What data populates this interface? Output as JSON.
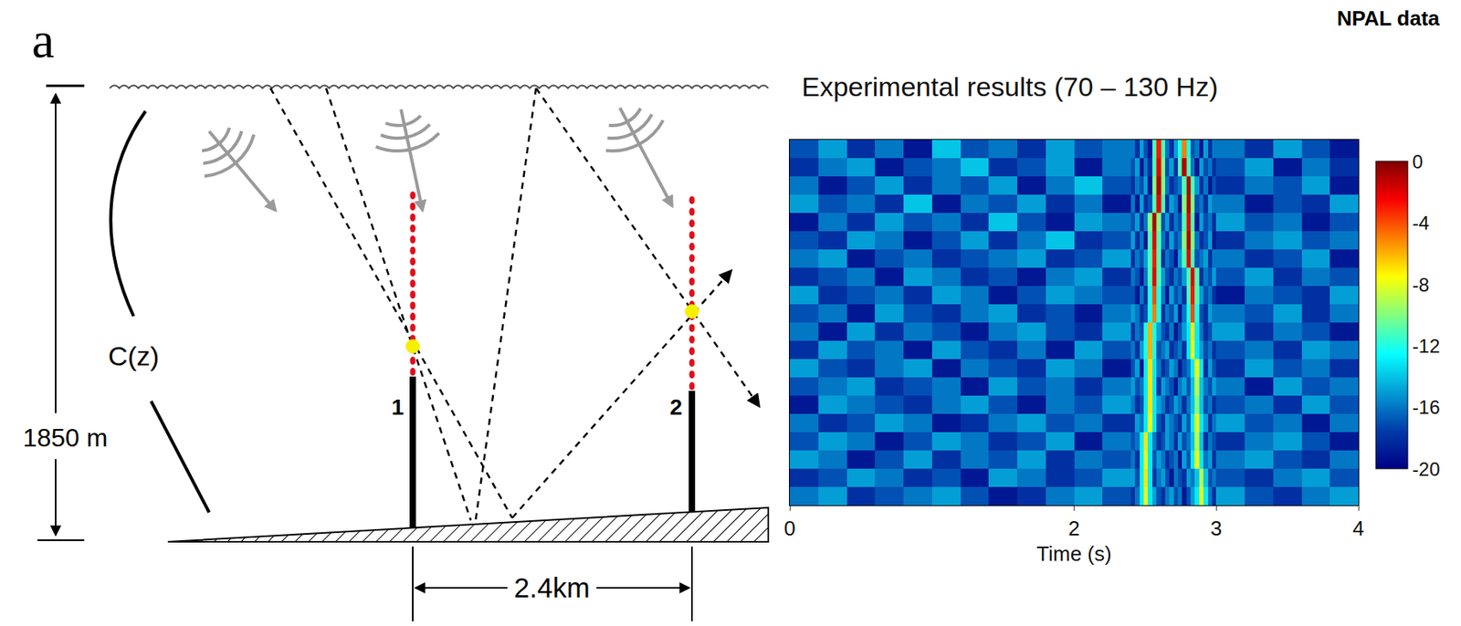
{
  "header": {
    "text": "NPAL data"
  },
  "diagram": {
    "panel_label": "a",
    "depth_label": "1850 m",
    "profile_label": "C(z)",
    "moorings": [
      "1",
      "2"
    ],
    "distance_label": "2.4km"
  },
  "chart_data": {
    "type": "heatmap",
    "title": "Experimental results (70 – 130 Hz)",
    "x_label": "Time (s)",
    "xlim": [
      0,
      4
    ],
    "xticks": [
      0,
      2,
      3,
      4
    ],
    "ylim": [
      20,
      0
    ],
    "tick_labels": "x",
    "x_edges": [
      0,
      0.2,
      0.4,
      0.6,
      0.8,
      1.0,
      1.2,
      1.4,
      1.6,
      1.8,
      2.0,
      2.2,
      2.4,
      2.43,
      2.46,
      2.49,
      2.52,
      2.55,
      2.58,
      2.61,
      2.64,
      2.67,
      2.7,
      2.73,
      2.76,
      2.79,
      2.82,
      2.85,
      2.88,
      2.91,
      2.94,
      2.97,
      3.0,
      3.2,
      3.4,
      3.6,
      3.8,
      4.0
    ],
    "y_edges": [
      0,
      1,
      2,
      3,
      4,
      5,
      6,
      7,
      8,
      9,
      10,
      11,
      12,
      13,
      14,
      15,
      16,
      17,
      18,
      19,
      20
    ],
    "cells": [
      [
        -17,
        -15,
        -18,
        -16,
        -19,
        -14,
        -17,
        -16,
        -18,
        -15,
        -17,
        -16,
        -16,
        -18,
        -15,
        -17,
        -19,
        -11,
        -3,
        -11,
        -16,
        -18,
        -15,
        -12,
        -5,
        -12,
        -17,
        -16,
        -19,
        -15,
        -18,
        -16,
        -16,
        -18,
        -15,
        -17,
        -19
      ],
      [
        -18,
        -16,
        -15,
        -19,
        -17,
        -16,
        -14,
        -18,
        -17,
        -15,
        -19,
        -16,
        -17,
        -15,
        -19,
        -16,
        -18,
        -11,
        -2,
        -10,
        -17,
        -15,
        -18,
        -11,
        -1,
        -11,
        -16,
        -19,
        -15,
        -17,
        -16,
        -18,
        -17,
        -15,
        -19,
        -16,
        -18
      ],
      [
        -16,
        -19,
        -17,
        -15,
        -18,
        -16,
        -17,
        -15,
        -19,
        -16,
        -14,
        -17,
        -18,
        -16,
        -17,
        -15,
        -19,
        -10,
        -1,
        -10,
        -16,
        -18,
        -17,
        -16,
        -11,
        -1,
        -11,
        -15,
        -18,
        -16,
        -19,
        -17,
        -18,
        -16,
        -17,
        -15,
        -19
      ],
      [
        -15,
        -17,
        -16,
        -18,
        -14,
        -19,
        -16,
        -17,
        -15,
        -18,
        -16,
        -19,
        -16,
        -19,
        -15,
        -18,
        -17,
        -11,
        -2,
        -11,
        -18,
        -15,
        -16,
        -19,
        -10,
        -1,
        -10,
        -17,
        -16,
        -18,
        -15,
        -16,
        -16,
        -19,
        -17,
        -18,
        -15
      ],
      [
        -19,
        -16,
        -18,
        -15,
        -17,
        -16,
        -18,
        -14,
        -17,
        -19,
        -15,
        -16,
        -17,
        -15,
        -18,
        -16,
        -10,
        -1,
        -10,
        -17,
        -15,
        -18,
        -16,
        -17,
        -11,
        -2,
        -11,
        -19,
        -15,
        -17,
        -16,
        -18,
        -15,
        -17,
        -16,
        -19,
        -17
      ],
      [
        -17,
        -18,
        -15,
        -16,
        -19,
        -17,
        -15,
        -18,
        -16,
        -14,
        -18,
        -17,
        -15,
        -18,
        -16,
        -19,
        -11,
        -2,
        -11,
        -16,
        -18,
        -15,
        -17,
        -16,
        -10,
        -1,
        -10,
        -16,
        -18,
        -17,
        -15,
        -19,
        -18,
        -16,
        -15,
        -17,
        -16
      ],
      [
        -16,
        -15,
        -19,
        -17,
        -16,
        -18,
        -17,
        -16,
        -15,
        -18,
        -17,
        -15,
        -18,
        -16,
        -17,
        -15,
        -11,
        -3,
        -11,
        -18,
        -16,
        -17,
        -19,
        -15,
        -11,
        -2,
        -11,
        -17,
        -16,
        -15,
        -18,
        -16,
        -16,
        -18,
        -17,
        -15,
        -19
      ],
      [
        -18,
        -17,
        -16,
        -19,
        -15,
        -16,
        -18,
        -17,
        -19,
        -16,
        -15,
        -18,
        -16,
        -17,
        -19,
        -16,
        -11,
        -2,
        -11,
        -15,
        -17,
        -18,
        -16,
        -17,
        -15,
        -11,
        -2,
        -11,
        -18,
        -16,
        -17,
        -15,
        -17,
        -15,
        -18,
        -16,
        -17
      ],
      [
        -15,
        -18,
        -17,
        -16,
        -18,
        -15,
        -16,
        -19,
        -17,
        -15,
        -16,
        -17,
        -17,
        -19,
        -16,
        -18,
        -12,
        -4,
        -12,
        -16,
        -19,
        -15,
        -17,
        -16,
        -18,
        -11,
        -3,
        -11,
        -15,
        -17,
        -16,
        -18,
        -19,
        -16,
        -17,
        -18,
        -15
      ],
      [
        -17,
        -16,
        -19,
        -15,
        -17,
        -18,
        -16,
        -15,
        -18,
        -17,
        -19,
        -16,
        -15,
        -16,
        -18,
        -17,
        -12,
        -5,
        -12,
        -18,
        -16,
        -17,
        -15,
        -19,
        -16,
        -12,
        -4,
        -12,
        -17,
        -18,
        -15,
        -16,
        -16,
        -17,
        -15,
        -18,
        -16
      ],
      [
        -16,
        -19,
        -15,
        -18,
        -16,
        -17,
        -19,
        -16,
        -15,
        -17,
        -18,
        -15,
        -18,
        -16,
        -17,
        -12,
        -6,
        -12,
        -15,
        -17,
        -18,
        -16,
        -19,
        -17,
        -15,
        -13,
        -7,
        -13,
        -16,
        -18,
        -17,
        -15,
        -15,
        -18,
        -16,
        -17,
        -19
      ],
      [
        -18,
        -15,
        -17,
        -16,
        -19,
        -15,
        -17,
        -18,
        -16,
        -19,
        -15,
        -17,
        -16,
        -18,
        -15,
        -12,
        -6,
        -12,
        -17,
        -16,
        -15,
        -18,
        -17,
        -16,
        -18,
        -13,
        -8,
        -13,
        -15,
        -17,
        -16,
        -18,
        -17,
        -16,
        -18,
        -15,
        -16
      ],
      [
        -15,
        -17,
        -18,
        -16,
        -15,
        -19,
        -16,
        -17,
        -18,
        -15,
        -16,
        -19,
        -17,
        -15,
        -19,
        -13,
        -7,
        -13,
        -16,
        -18,
        -17,
        -15,
        -16,
        -19,
        -17,
        -16,
        -13,
        -8,
        -13,
        -18,
        -15,
        -17,
        -18,
        -15,
        -17,
        -16,
        -18
      ],
      [
        -17,
        -16,
        -15,
        -18,
        -17,
        -16,
        -19,
        -15,
        -17,
        -16,
        -18,
        -16,
        -15,
        -17,
        -16,
        -13,
        -7,
        -13,
        -18,
        -15,
        -16,
        -17,
        -19,
        -16,
        -15,
        -17,
        -14,
        -9,
        -14,
        -16,
        -17,
        -15,
        -16,
        -19,
        -15,
        -17,
        -16
      ],
      [
        -19,
        -15,
        -16,
        -17,
        -18,
        -16,
        -15,
        -17,
        -19,
        -16,
        -17,
        -15,
        -16,
        -18,
        -17,
        -13,
        -7,
        -13,
        -15,
        -16,
        -18,
        -17,
        -15,
        -16,
        -18,
        -16,
        -14,
        -10,
        -14,
        -17,
        -16,
        -18,
        -17,
        -16,
        -18,
        -15,
        -17
      ],
      [
        -16,
        -18,
        -17,
        -15,
        -16,
        -19,
        -18,
        -16,
        -15,
        -17,
        -16,
        -18,
        -18,
        -15,
        -16,
        -13,
        -8,
        -13,
        -17,
        -18,
        -15,
        -16,
        -17,
        -18,
        -15,
        -17,
        -13,
        -8,
        -13,
        -15,
        -18,
        -16,
        -15,
        -17,
        -16,
        -19,
        -16
      ],
      [
        -17,
        -15,
        -16,
        -19,
        -17,
        -15,
        -16,
        -18,
        -17,
        -15,
        -19,
        -16,
        -17,
        -16,
        -13,
        -7,
        -13,
        -16,
        -18,
        -17,
        -15,
        -16,
        -18,
        -15,
        -17,
        -16,
        -14,
        -9,
        -14,
        -18,
        -16,
        -17,
        -18,
        -16,
        -15,
        -17,
        -19
      ],
      [
        -15,
        -16,
        -19,
        -17,
        -15,
        -18,
        -16,
        -17,
        -15,
        -18,
        -16,
        -17,
        -16,
        -18,
        -13,
        -8,
        -13,
        -17,
        -15,
        -16,
        -18,
        -17,
        -16,
        -19,
        -15,
        -17,
        -13,
        -8,
        -13,
        -16,
        -15,
        -18,
        -16,
        -15,
        -17,
        -18,
        -16
      ],
      [
        -18,
        -17,
        -15,
        -16,
        -18,
        -17,
        -19,
        -15,
        -16,
        -18,
        -17,
        -15,
        -15,
        -17,
        -13,
        -7,
        -13,
        -18,
        -16,
        -15,
        -17,
        -19,
        -16,
        -17,
        -18,
        -15,
        -16,
        -14,
        -9,
        -14,
        -17,
        -16,
        -17,
        -18,
        -16,
        -15,
        -17
      ],
      [
        -16,
        -15,
        -18,
        -17,
        -16,
        -15,
        -17,
        -19,
        -18,
        -16,
        -15,
        -17,
        -18,
        -16,
        -13,
        -8,
        -13,
        -15,
        -17,
        -18,
        -16,
        -15,
        -17,
        -16,
        -19,
        -17,
        -15,
        -13,
        -8,
        -13,
        -16,
        -18,
        -15,
        -17,
        -18,
        -16,
        -15
      ]
    ],
    "color_range": [
      -20,
      0
    ],
    "color_ticks": [
      0,
      -4,
      -8,
      -12,
      -16,
      -20
    ]
  }
}
